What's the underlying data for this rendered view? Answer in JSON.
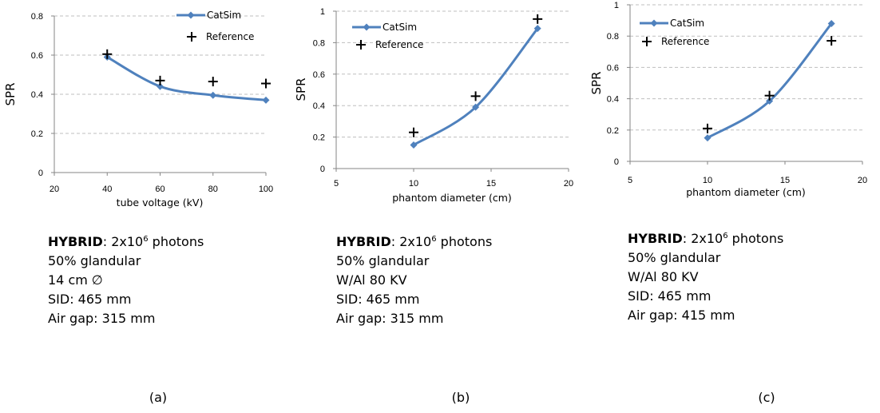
{
  "colors": {
    "line": "#4F81BD",
    "marker": "#000000",
    "grid": "#BFBFBF"
  },
  "chart_data": [
    {
      "type": "line",
      "ylabel": "SPR",
      "xlabel": "tube voltage (kV)",
      "xlim": [
        20,
        100
      ],
      "ylim": [
        0,
        0.8
      ],
      "xticks": [
        "20",
        "40",
        "60",
        "80",
        "100"
      ],
      "yticks": [
        "0",
        "0.2",
        "0.4",
        "0.6",
        "0.8"
      ],
      "grid": "horizontal dashed",
      "legend_position": "top-right",
      "series": [
        {
          "name": "CatSim",
          "style": "line+diamond",
          "x": [
            40,
            60,
            80,
            100
          ],
          "y": [
            0.59,
            0.44,
            0.395,
            0.37
          ]
        },
        {
          "name": "Reference",
          "style": "plus",
          "x": [
            40,
            60,
            80,
            100
          ],
          "y": [
            0.605,
            0.47,
            0.465,
            0.455
          ]
        }
      ]
    },
    {
      "type": "line",
      "ylabel": "SPR",
      "xlabel": "phantom diameter (cm)",
      "xlim": [
        5,
        20
      ],
      "ylim": [
        0,
        1
      ],
      "xticks": [
        "5",
        "10",
        "15",
        "20"
      ],
      "yticks": [
        "0",
        "0.2",
        "0.4",
        "0.6",
        "0.8",
        "1"
      ],
      "grid": "horizontal dashed",
      "legend_position": "top-left",
      "series": [
        {
          "name": "CatSim",
          "style": "line+diamond",
          "x": [
            10,
            14,
            18
          ],
          "y": [
            0.15,
            0.39,
            0.89
          ]
        },
        {
          "name": "Reference",
          "style": "plus",
          "x": [
            10,
            14,
            18
          ],
          "y": [
            0.23,
            0.46,
            0.95
          ]
        }
      ]
    },
    {
      "type": "line",
      "ylabel": "SPR",
      "xlabel": "phantom diameter (cm)",
      "xlim": [
        5,
        20
      ],
      "ylim": [
        0,
        1
      ],
      "xticks": [
        "5",
        "10",
        "15",
        "20"
      ],
      "yticks": [
        "0",
        "0.2",
        "0.4",
        "0.6",
        "0.8",
        "1"
      ],
      "grid": "horizontal dashed",
      "legend_position": "top-left",
      "series": [
        {
          "name": "CatSim",
          "style": "line+diamond",
          "x": [
            10,
            14,
            18
          ],
          "y": [
            0.15,
            0.385,
            0.88
          ]
        },
        {
          "name": "Reference",
          "style": "plus",
          "x": [
            10,
            14,
            18
          ],
          "y": [
            0.21,
            0.42,
            0.77
          ]
        }
      ]
    }
  ],
  "panels": [
    {
      "hybrid_label": "HYBRID",
      "photons_prefix": ": 2x10",
      "photons_exp": "6",
      "photons_suffix": " photons",
      "lines": [
        "50% glandular",
        "14 cm ∅",
        "SID: 465 mm",
        "Air gap:  315 mm"
      ],
      "caption": "(a)"
    },
    {
      "hybrid_label": "HYBRID",
      "photons_prefix": ": 2x10",
      "photons_exp": "6",
      "photons_suffix": " photons",
      "lines": [
        "50% glandular",
        "W/Al 80 KV",
        "SID: 465 mm",
        "Air gap:  315 mm"
      ],
      "caption": "(b)"
    },
    {
      "hybrid_label": "HYBRID",
      "photons_prefix": ": 2x10",
      "photons_exp": "6",
      "photons_suffix": " photons",
      "lines": [
        "50% glandular",
        "W/Al 80 KV",
        "SID: 465 mm",
        "Air gap:  415 mm"
      ],
      "caption": "(c)"
    }
  ]
}
